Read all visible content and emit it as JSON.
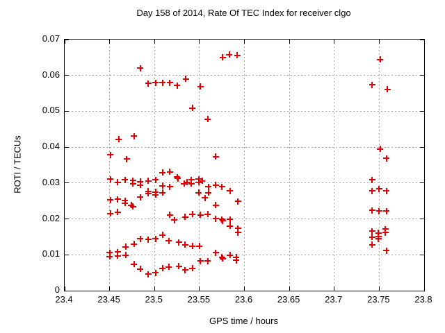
{
  "colors": {
    "marker": "#e00000",
    "grid": "#a0a0a0",
    "frame": "#000000",
    "background": "#ffffff"
  },
  "chart_data": {
    "type": "scatter",
    "title": "Day 158 of 2014, Rate Of TEC Index for receiver clgo",
    "xlabel": "GPS time / hours",
    "ylabel": "ROTI / TECUs",
    "xlim": [
      23.4,
      23.8
    ],
    "ylim": [
      0,
      0.07
    ],
    "xticks": [
      23.4,
      23.45,
      23.5,
      23.55,
      23.6,
      23.65,
      23.7,
      23.75,
      23.8
    ],
    "xtick_labels": [
      "23.4",
      "23.45",
      "23.5",
      "23.55",
      "23.6",
      "23.65",
      "23.7",
      "23.75",
      "23.8"
    ],
    "yticks": [
      0,
      0.01,
      0.02,
      0.03,
      0.04,
      0.05,
      0.06,
      0.07
    ],
    "ytick_labels": [
      "0",
      "0.01",
      "0.02",
      "0.03",
      "0.04",
      "0.05",
      "0.06",
      "0.07"
    ],
    "grid": true,
    "legend": false,
    "marker": {
      "shape": "plus",
      "color": "#e00000",
      "size": 9
    },
    "series": [
      {
        "name": "ROTI",
        "points": [
          [
            23.451,
            0.0379
          ],
          [
            23.46,
            0.0422
          ],
          [
            23.469,
            0.0367
          ],
          [
            23.477,
            0.0431
          ],
          [
            23.484,
            0.062
          ],
          [
            23.493,
            0.0578
          ],
          [
            23.501,
            0.058
          ],
          [
            23.509,
            0.058
          ],
          [
            23.517,
            0.058
          ],
          [
            23.525,
            0.0572
          ],
          [
            23.535,
            0.059
          ],
          [
            23.542,
            0.0509
          ],
          [
            23.551,
            0.0569
          ],
          [
            23.559,
            0.0478
          ],
          [
            23.568,
            0.0374
          ],
          [
            23.576,
            0.065
          ],
          [
            23.583,
            0.0658
          ],
          [
            23.592,
            0.0656
          ],
          [
            23.451,
            0.0311
          ],
          [
            23.459,
            0.0302
          ],
          [
            23.467,
            0.0309
          ],
          [
            23.476,
            0.0307
          ],
          [
            23.476,
            0.0298
          ],
          [
            23.484,
            0.0304
          ],
          [
            23.484,
            0.0294
          ],
          [
            23.493,
            0.0306
          ],
          [
            23.493,
            0.0277
          ],
          [
            23.493,
            0.0271
          ],
          [
            23.501,
            0.0309
          ],
          [
            23.501,
            0.0275
          ],
          [
            23.501,
            0.0267
          ],
          [
            23.509,
            0.0329
          ],
          [
            23.509,
            0.0292
          ],
          [
            23.509,
            0.0273
          ],
          [
            23.517,
            0.0331
          ],
          [
            23.517,
            0.029
          ],
          [
            23.525,
            0.0317
          ],
          [
            23.526,
            0.0313
          ],
          [
            23.533,
            0.0298
          ],
          [
            23.536,
            0.0302
          ],
          [
            23.541,
            0.0309
          ],
          [
            23.541,
            0.0298
          ],
          [
            23.549,
            0.0311
          ],
          [
            23.549,
            0.0302
          ],
          [
            23.549,
            0.0273
          ],
          [
            23.553,
            0.0306
          ],
          [
            23.556,
            0.0259
          ],
          [
            23.56,
            0.029
          ],
          [
            23.56,
            0.0273
          ],
          [
            23.568,
            0.0294
          ],
          [
            23.568,
            0.0238
          ],
          [
            23.575,
            0.029
          ],
          [
            23.584,
            0.0278
          ],
          [
            23.593,
            0.0249
          ],
          [
            23.451,
            0.0253
          ],
          [
            23.459,
            0.0255
          ],
          [
            23.467,
            0.0251
          ],
          [
            23.467,
            0.0244
          ],
          [
            23.474,
            0.0238
          ],
          [
            23.476,
            0.0234
          ],
          [
            23.484,
            0.0261
          ],
          [
            23.451,
            0.0215
          ],
          [
            23.459,
            0.0219
          ],
          [
            23.517,
            0.0211
          ],
          [
            23.522,
            0.0197
          ],
          [
            23.534,
            0.0205
          ],
          [
            23.542,
            0.0213
          ],
          [
            23.551,
            0.0211
          ],
          [
            23.559,
            0.0213
          ],
          [
            23.568,
            0.0201
          ],
          [
            23.575,
            0.0199
          ],
          [
            23.576,
            0.0195
          ],
          [
            23.584,
            0.0199
          ],
          [
            23.584,
            0.018
          ],
          [
            23.593,
            0.0174
          ],
          [
            23.593,
            0.0162
          ],
          [
            23.468,
            0.0122
          ],
          [
            23.477,
            0.013
          ],
          [
            23.484,
            0.0145
          ],
          [
            23.493,
            0.0143
          ],
          [
            23.501,
            0.0145
          ],
          [
            23.509,
            0.0155
          ],
          [
            23.516,
            0.0139
          ],
          [
            23.527,
            0.0135
          ],
          [
            23.534,
            0.0128
          ],
          [
            23.542,
            0.0124
          ],
          [
            23.55,
            0.0124
          ],
          [
            23.45,
            0.0106
          ],
          [
            23.45,
            0.0095
          ],
          [
            23.459,
            0.0108
          ],
          [
            23.459,
            0.0097
          ],
          [
            23.468,
            0.0099
          ],
          [
            23.551,
            0.0083
          ],
          [
            23.559,
            0.0083
          ],
          [
            23.568,
            0.0106
          ],
          [
            23.575,
            0.0093
          ],
          [
            23.576,
            0.0089
          ],
          [
            23.584,
            0.0099
          ],
          [
            23.591,
            0.0093
          ],
          [
            23.591,
            0.0085
          ],
          [
            23.477,
            0.0074
          ],
          [
            23.484,
            0.006
          ],
          [
            23.493,
            0.0046
          ],
          [
            23.501,
            0.005
          ],
          [
            23.509,
            0.0062
          ],
          [
            23.516,
            0.0066
          ],
          [
            23.527,
            0.0068
          ],
          [
            23.534,
            0.0058
          ],
          [
            23.542,
            0.0062
          ],
          [
            23.742,
            0.0574
          ],
          [
            23.742,
            0.0309
          ],
          [
            23.742,
            0.0278
          ],
          [
            23.742,
            0.0224
          ],
          [
            23.742,
            0.0166
          ],
          [
            23.742,
            0.0149
          ],
          [
            23.742,
            0.0128
          ],
          [
            23.749,
            0.0161
          ],
          [
            23.749,
            0.0151
          ],
          [
            23.749,
            0.0145
          ],
          [
            23.75,
            0.0284
          ],
          [
            23.75,
            0.0222
          ],
          [
            23.751,
            0.0644
          ],
          [
            23.751,
            0.0395
          ],
          [
            23.757,
            0.0172
          ],
          [
            23.757,
            0.0162
          ],
          [
            23.758,
            0.0369
          ],
          [
            23.758,
            0.0278
          ],
          [
            23.758,
            0.0222
          ],
          [
            23.758,
            0.0112
          ],
          [
            23.759,
            0.0561
          ]
        ]
      }
    ]
  }
}
